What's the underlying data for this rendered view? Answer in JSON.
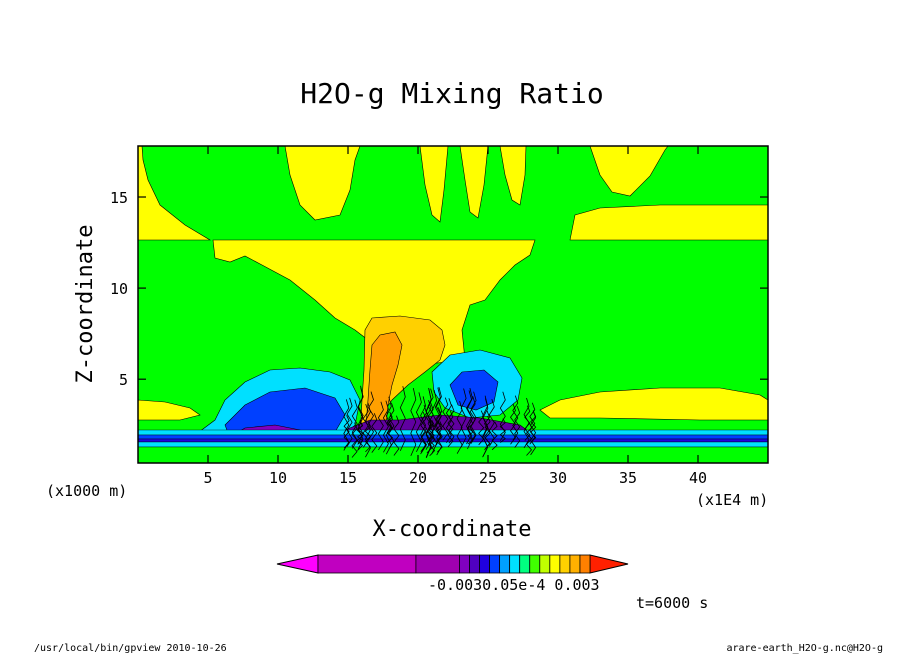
{
  "chart_data": {
    "type": "heatmap",
    "title": "H2O-g Mixing Ratio",
    "xlabel": "X-coordinate",
    "ylabel": "Z-coordinate",
    "x_unit_label": "(x1000 m)",
    "x_scale_label": "(x1E4 m)",
    "xlim": [
      0,
      45
    ],
    "ylim": [
      0.4,
      17.8
    ],
    "x_ticks": [
      5,
      10,
      15,
      20,
      25,
      30,
      35,
      40
    ],
    "y_ticks": [
      5,
      10,
      15
    ],
    "grid": false,
    "legend": "bottom-colorbar",
    "colorbar": {
      "colors": [
        "#ff00ff",
        "#c000c0",
        "#a000b0",
        "#8000c0",
        "#5000c0",
        "#2000e0",
        "#0040ff",
        "#00a0ff",
        "#00e0ff",
        "#00ff80",
        "#40ff00",
        "#c0ff00",
        "#ffff00",
        "#ffd000",
        "#ffb000",
        "#ff8000",
        "#ff2000"
      ],
      "tick_labels": [
        "-0.003",
        "0.0",
        "5e-4",
        "0.003"
      ],
      "tick_text": "-0.0030.05e-4  0.003"
    },
    "contour_regions": [
      {
        "level": "green",
        "color": "#00ff00"
      },
      {
        "level": "yellow",
        "color": "#ffff00"
      },
      {
        "level": "light-orange",
        "color": "#ffd000"
      },
      {
        "level": "orange",
        "color": "#ffa000"
      },
      {
        "level": "cyan",
        "color": "#00e0ff"
      },
      {
        "level": "blue",
        "color": "#0040ff"
      },
      {
        "level": "purple",
        "color": "#8000c0"
      }
    ]
  },
  "annotations": {
    "time": "t=6000 s",
    "footer_left": "/usr/local/bin/gpview  2010-10-26",
    "footer_right": "arare-earth_H2O-g.nc@H2O-g"
  }
}
